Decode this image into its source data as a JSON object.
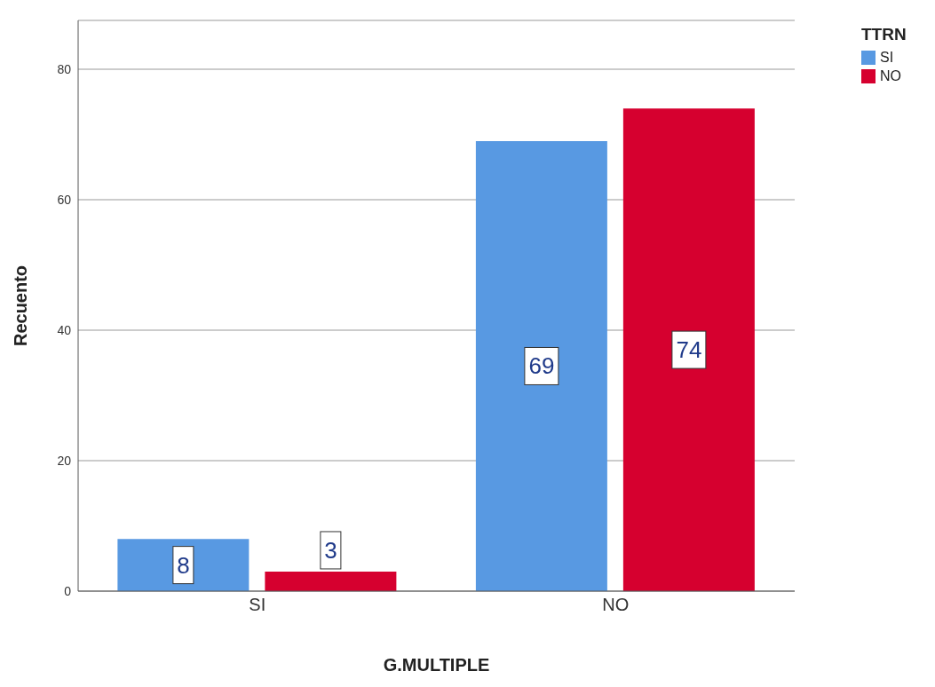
{
  "chart_data": {
    "type": "bar",
    "xlabel": "G.MULTIPLE",
    "ylabel": "Recuento",
    "legend_title": "TTRN",
    "categories": [
      "SI",
      "NO"
    ],
    "series": [
      {
        "name": "SI",
        "color": "#5899e2",
        "values": [
          8,
          69
        ]
      },
      {
        "name": "NO",
        "color": "#d6002f",
        "values": [
          3,
          74
        ]
      }
    ],
    "ylim": [
      0,
      87.5
    ],
    "yticks": [
      0,
      20,
      40,
      60,
      80
    ],
    "grid": "y",
    "legend": "top right",
    "data_labels": true
  }
}
